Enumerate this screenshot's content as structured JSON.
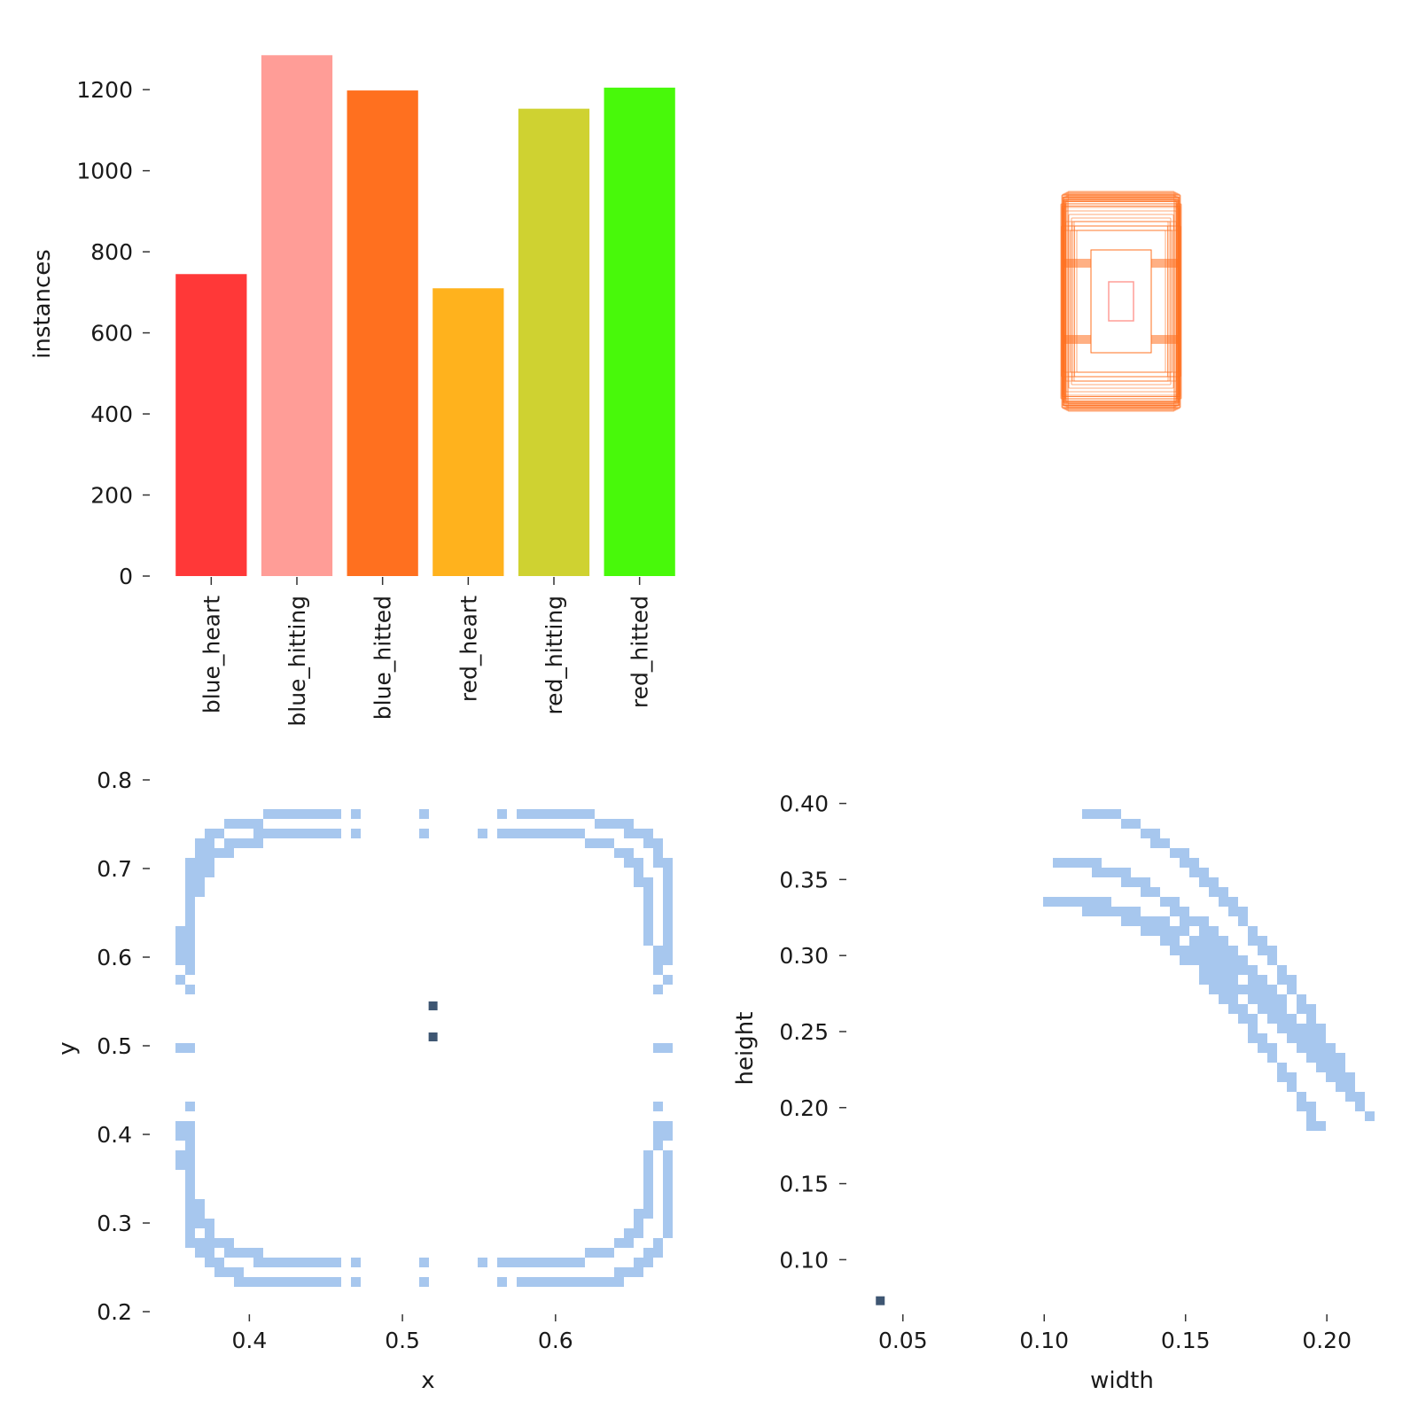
{
  "chart_data": [
    {
      "type": "bar",
      "title": "",
      "xlabel": "",
      "ylabel": "instances",
      "ylim": [
        0,
        1290
      ],
      "yticks": [
        0,
        200,
        400,
        600,
        800,
        1000,
        1200
      ],
      "categories": [
        "blue_heart",
        "blue_hitting",
        "blue_hitted",
        "red_heart",
        "red_hitting",
        "red_hitted"
      ],
      "values": [
        745,
        1285,
        1198,
        710,
        1153,
        1205
      ],
      "colors": [
        "#ff3838",
        "#ff9d97",
        "#ff701f",
        "#ffb21d",
        "#cfd231",
        "#48f90a"
      ],
      "grid": false
    },
    {
      "type": "other",
      "description_kind": "box-overlay",
      "title": "",
      "box_color": "#ff701f",
      "inner_box_color": "#ff9d97"
    },
    {
      "type": "heatmap",
      "title": "",
      "xlabel": "x",
      "ylabel": "y",
      "xlim": [
        0.35,
        0.68
      ],
      "ylim": [
        0.2,
        0.8
      ],
      "xticks": [
        "0.4",
        "0.5",
        "0.6"
      ],
      "yticks": [
        "0.2",
        "0.3",
        "0.4",
        "0.5",
        "0.6",
        "0.7",
        "0.8"
      ],
      "cell_color": "#a7c7ee",
      "hot_color": "#3e5672",
      "hot_points": [
        [
          0.52,
          0.545
        ],
        [
          0.52,
          0.51
        ]
      ],
      "grid": false
    },
    {
      "type": "heatmap",
      "title": "",
      "xlabel": "width",
      "ylabel": "height",
      "xlim": [
        0.03,
        0.215
      ],
      "ylim": [
        0.06,
        0.405
      ],
      "xticks": [
        "0.05",
        "0.10",
        "0.15",
        "0.20"
      ],
      "yticks": [
        "0.10",
        "0.15",
        "0.20",
        "0.25",
        "0.30",
        "0.35",
        "0.40"
      ],
      "cell_color": "#a7c7ee",
      "hot_color": "#3e5672",
      "hot_points": [
        [
          0.042,
          0.073
        ]
      ],
      "grid": false
    }
  ]
}
